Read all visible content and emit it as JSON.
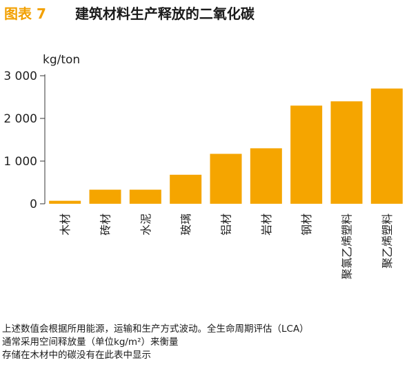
{
  "header": {
    "fig_number": "图表 7",
    "title": "建筑材料生产释放的二氧化碳"
  },
  "chart_data": {
    "type": "bar",
    "unit_label": "kg/ton",
    "categories": [
      "木材",
      "砖材",
      "水泥",
      "玻璃",
      "铝材",
      "岩材",
      "钢材",
      "聚氯乙烯塑料",
      "聚乙烯塑料"
    ],
    "values": [
      70,
      330,
      330,
      680,
      1170,
      1300,
      2300,
      2400,
      2700
    ],
    "ylim": [
      0,
      3000
    ],
    "yticks": [
      0,
      1000,
      2000,
      3000
    ],
    "ytick_labels": [
      "0",
      "1 000",
      "2 000",
      "3 000"
    ],
    "bar_color": "#f5a500",
    "grid": false
  },
  "footnote": {
    "lines": [
      "上述数值会根据所用能源，运输和生产方式波动。全生命周期评估（LCA）",
      "通常采用空间释放量（单位kg/m²）来衡量",
      "存储在木材中的碳没有在此表中显示"
    ]
  }
}
